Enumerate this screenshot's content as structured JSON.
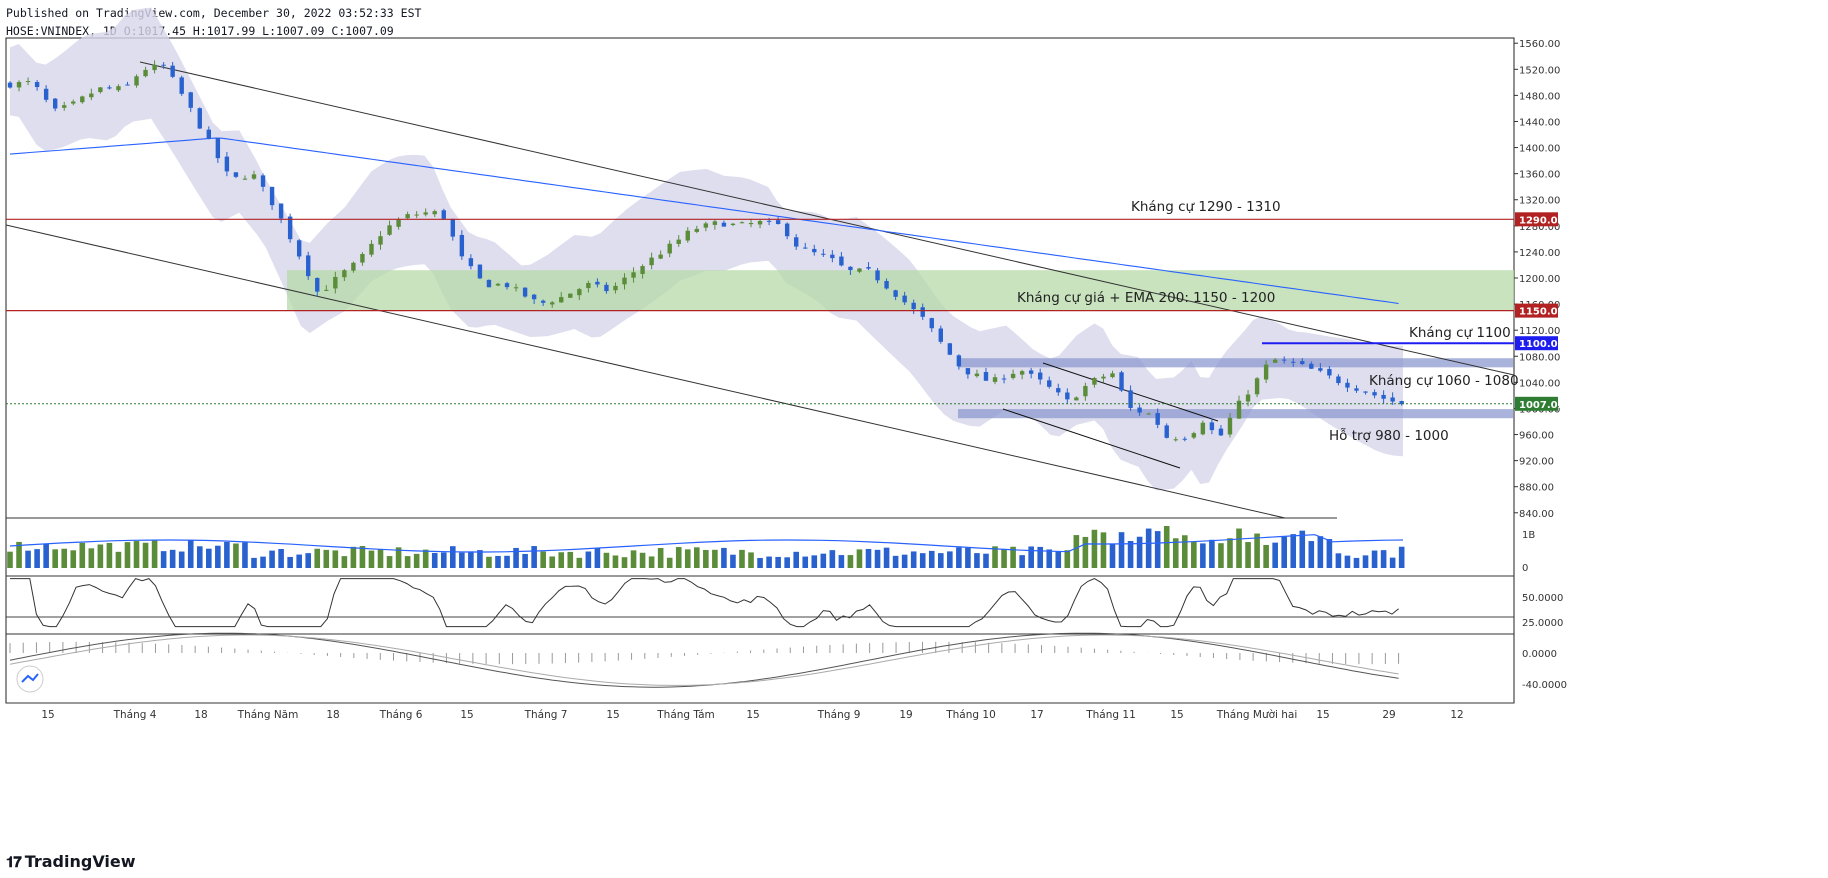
{
  "header": {
    "published": "Published on TradingView.com, December 30, 2022 03:52:33 EST",
    "symbol_line": "HOSE:VNINDEX, 1D O:1017.45 H:1017.99 L:1007.09 C:1007.09"
  },
  "footer": {
    "brand": "TradingView"
  },
  "colors": {
    "up": "#5b8c3a",
    "down": "#2962cf",
    "ema": "#2962ff",
    "resistance": "#b22222",
    "zone_green": "#b5d9a8",
    "zone_blue": "#8e9ad0",
    "cloud": "#d6d6ea",
    "last_price": "#2e7d32",
    "blue_level": "#1d1df0"
  },
  "chart_data": {
    "type": "candlestick",
    "symbol": "HOSE:VNINDEX",
    "interval": "1D",
    "ylim": [
      832,
      1568
    ],
    "y_ticks": [
      840.0,
      880.0,
      920.0,
      960.0,
      1000.0,
      1040.0,
      1080.0,
      1120.0,
      1160.0,
      1200.0,
      1240.0,
      1280.0,
      1320.0,
      1360.0,
      1400.0,
      1440.0,
      1480.0,
      1520.0,
      1560.0
    ],
    "x_labels": [
      "15",
      "Tháng 4",
      "18",
      "Tháng Năm",
      "18",
      "Tháng 6",
      "15",
      "Tháng 7",
      "15",
      "Tháng Tám",
      "15",
      "Tháng 9",
      "19",
      "Tháng 10",
      "17",
      "Tháng 11",
      "15",
      "Tháng Mười hai",
      "15",
      "29",
      "12"
    ],
    "price_points": [
      [
        0,
        1497
      ],
      [
        10,
        1500
      ],
      [
        20,
        1455
      ],
      [
        28,
        1465
      ],
      [
        40,
        1490
      ],
      [
        52,
        1490
      ],
      [
        60,
        1520
      ],
      [
        70,
        1525
      ],
      [
        80,
        1470
      ],
      [
        90,
        1410
      ],
      [
        100,
        1350
      ],
      [
        110,
        1360
      ],
      [
        120,
        1310
      ],
      [
        132,
        1230
      ],
      [
        140,
        1175
      ],
      [
        150,
        1205
      ],
      [
        158,
        1225
      ],
      [
        170,
        1275
      ],
      [
        180,
        1295
      ],
      [
        188,
        1300
      ],
      [
        196,
        1300
      ],
      [
        205,
        1230
      ],
      [
        215,
        1190
      ],
      [
        225,
        1190
      ],
      [
        240,
        1160
      ],
      [
        250,
        1170
      ],
      [
        262,
        1190
      ],
      [
        272,
        1180
      ],
      [
        285,
        1215
      ],
      [
        300,
        1250
      ],
      [
        310,
        1275
      ],
      [
        322,
        1285
      ],
      [
        330,
        1280
      ],
      [
        340,
        1285
      ],
      [
        350,
        1280
      ],
      [
        358,
        1245
      ],
      [
        372,
        1230
      ],
      [
        380,
        1210
      ],
      [
        390,
        1210
      ],
      [
        402,
        1175
      ],
      [
        415,
        1135
      ],
      [
        425,
        1088
      ],
      [
        432,
        1060
      ],
      [
        445,
        1040
      ],
      [
        458,
        1060
      ],
      [
        468,
        1040
      ],
      [
        480,
        1010
      ],
      [
        490,
        1040
      ],
      [
        500,
        1055
      ],
      [
        508,
        1000
      ],
      [
        518,
        990
      ],
      [
        525,
        955
      ],
      [
        535,
        958
      ],
      [
        542,
        985
      ],
      [
        548,
        950
      ],
      [
        556,
        1000
      ],
      [
        565,
        1040
      ],
      [
        572,
        1075
      ],
      [
        582,
        1070
      ],
      [
        594,
        1055
      ],
      [
        604,
        1040
      ],
      [
        612,
        1030
      ],
      [
        618,
        1022
      ],
      [
        626,
        1012
      ],
      [
        632,
        1007.09
      ]
    ],
    "annotations": [
      {
        "key": "r1",
        "text": "Kháng cự 1290 - 1310"
      },
      {
        "key": "r2",
        "text": "Kháng cự giá + EMA 200: 1150 - 1200"
      },
      {
        "key": "r3",
        "text": "Kháng cự 1100"
      },
      {
        "key": "r4",
        "text": "Kháng cự 1060 - 1080"
      },
      {
        "key": "s1",
        "text": "Hỗ trợ 980 - 1000"
      }
    ],
    "levels": [
      {
        "value": 1290,
        "label": "1290.00",
        "color": "#b22222"
      },
      {
        "value": 1150,
        "label": "1150.00",
        "color": "#b22222"
      },
      {
        "value": 1100,
        "label": "1100.00",
        "color": "#1d1df0"
      },
      {
        "value": 1007.09,
        "label": "1007.09",
        "color": "#2e7d32"
      }
    ],
    "zones": [
      {
        "from": 1150,
        "to": 1212,
        "color": "#b5d9a8"
      },
      {
        "from": 1063,
        "to": 1077,
        "color": "#8e9ad0"
      },
      {
        "from": 985,
        "to": 999,
        "color": "#8e9ad0"
      }
    ],
    "volume": {
      "axis_ticks": [
        "1B",
        "0"
      ]
    },
    "rsi": {
      "axis_ticks": [
        "50.0000",
        "25.0000"
      ]
    },
    "macd": {
      "axis_ticks": [
        "0.0000",
        "-40.0000"
      ]
    }
  }
}
